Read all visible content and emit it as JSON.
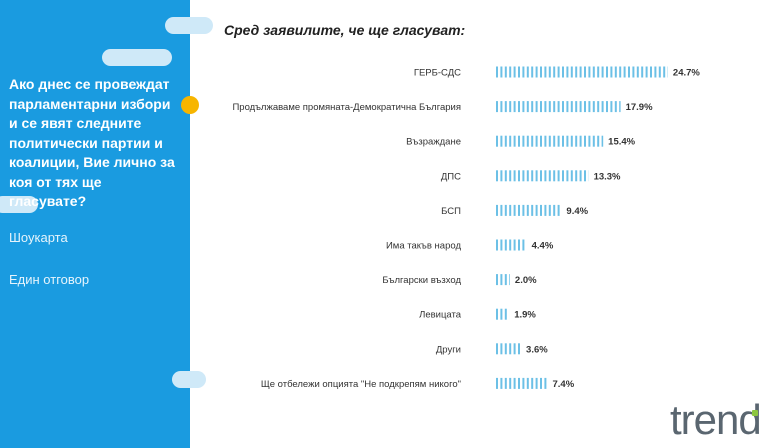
{
  "sidebar": {
    "question": "Ако днес се провеждат парламентарни избори и се явят следните политически партии и коалиции, Вие лично за коя от тях ще гласувате?",
    "method": "Шоукарта",
    "answer_type": "Един отговор"
  },
  "logo": {
    "text": "trend"
  },
  "colors": {
    "sidebar": "#1a9be0",
    "bar": "#6cc0e6",
    "accent": "#f7b500"
  },
  "chart_data": {
    "type": "bar",
    "orientation": "horizontal",
    "title": "Сред заявилите, че ще гласуват:",
    "categories": [
      "ГЕРБ-СДС",
      "Продължаваме промяната-Демократична България",
      "Възраждане",
      "ДПС",
      "БСП",
      "Има такъв народ",
      "Български възход",
      "Левицата",
      "Други",
      "Ще отбележи опцията \"Не подкрепям никого\""
    ],
    "values": [
      24.7,
      17.9,
      15.4,
      13.3,
      9.4,
      4.4,
      2.0,
      1.9,
      3.6,
      7.4
    ],
    "value_labels": [
      "24.7%",
      "17.9%",
      "15.4%",
      "13.3%",
      "9.4%",
      "4.4%",
      "2.0%",
      "1.9%",
      "3.6%",
      "7.4%"
    ],
    "xlim": [
      0,
      25
    ],
    "grid": false,
    "legend": "none"
  }
}
